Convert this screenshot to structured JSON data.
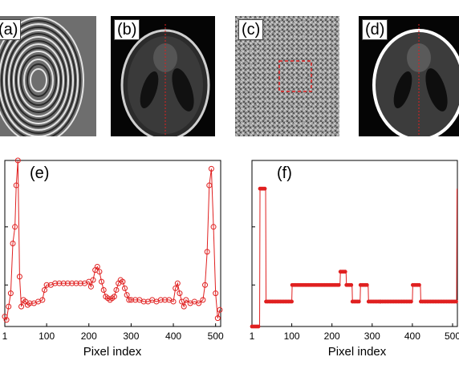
{
  "panels": {
    "a": {
      "label": "(a)"
    },
    "b": {
      "label": "(b)"
    },
    "c": {
      "label": "(c)"
    },
    "d": {
      "label": "(d)"
    }
  },
  "plots": {
    "e": {
      "label": "(e)",
      "xlabel": "Pixel index"
    },
    "f": {
      "label": "(f)",
      "xlabel": "Pixel index"
    }
  },
  "colors": {
    "profile": "#e02020",
    "selection_box": "#e02020"
  },
  "chart_data": [
    {
      "type": "line",
      "panel": "e",
      "marker": "circle",
      "xlabel": "Pixel index",
      "xticks": [
        1,
        100,
        200,
        300,
        400,
        500
      ],
      "xlim": [
        1,
        512
      ],
      "ylim": [
        0,
        1.0
      ],
      "x": [
        1,
        5,
        10,
        15,
        20,
        25,
        28,
        32,
        36,
        40,
        45,
        50,
        55,
        60,
        70,
        80,
        90,
        95,
        100,
        110,
        120,
        130,
        140,
        150,
        160,
        170,
        180,
        190,
        200,
        205,
        210,
        215,
        220,
        225,
        230,
        235,
        240,
        245,
        250,
        255,
        260,
        265,
        270,
        275,
        280,
        285,
        290,
        295,
        300,
        310,
        320,
        330,
        340,
        350,
        360,
        370,
        380,
        390,
        400,
        405,
        410,
        415,
        420,
        425,
        430,
        440,
        450,
        460,
        470,
        475,
        480,
        485,
        490,
        495,
        500,
        505,
        510
      ],
      "y": [
        0.06,
        0.04,
        0.12,
        0.2,
        0.5,
        0.6,
        0.85,
        1.0,
        0.3,
        0.12,
        0.16,
        0.15,
        0.13,
        0.14,
        0.14,
        0.15,
        0.16,
        0.22,
        0.25,
        0.25,
        0.26,
        0.26,
        0.26,
        0.26,
        0.26,
        0.26,
        0.26,
        0.26,
        0.27,
        0.24,
        0.28,
        0.34,
        0.36,
        0.33,
        0.27,
        0.22,
        0.18,
        0.17,
        0.16,
        0.17,
        0.18,
        0.22,
        0.26,
        0.28,
        0.27,
        0.23,
        0.19,
        0.16,
        0.16,
        0.16,
        0.16,
        0.15,
        0.15,
        0.16,
        0.15,
        0.16,
        0.16,
        0.16,
        0.15,
        0.23,
        0.26,
        0.2,
        0.15,
        0.12,
        0.16,
        0.14,
        0.15,
        0.14,
        0.16,
        0.25,
        0.45,
        0.85,
        0.95,
        0.6,
        0.2,
        0.05,
        0.1
      ]
    },
    {
      "type": "line",
      "panel": "f",
      "marker": "dot",
      "xlabel": "Pixel index",
      "xticks": [
        1,
        100,
        200,
        300,
        400,
        500
      ],
      "xlim": [
        1,
        512
      ],
      "ylim": [
        0,
        1.0
      ],
      "x": [
        1,
        20,
        21,
        35,
        36,
        100,
        101,
        220,
        221,
        235,
        236,
        250,
        251,
        270,
        271,
        290,
        291,
        320,
        321,
        400,
        401,
        420,
        421,
        510,
        511
      ],
      "y": [
        0.0,
        0.0,
        0.83,
        0.83,
        0.15,
        0.15,
        0.25,
        0.25,
        0.33,
        0.33,
        0.25,
        0.25,
        0.15,
        0.15,
        0.25,
        0.25,
        0.15,
        0.15,
        0.15,
        0.15,
        0.25,
        0.25,
        0.15,
        0.15,
        0.83
      ]
    }
  ]
}
